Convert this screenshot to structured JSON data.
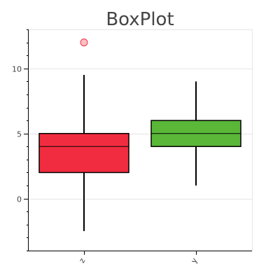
{
  "chart_data": {
    "type": "box",
    "title": "BoxPlot",
    "xlabel": "",
    "ylabel": "",
    "categories": [
      "z",
      "y"
    ],
    "ylim": [
      -4,
      13
    ],
    "yticks": [
      0,
      5,
      10
    ],
    "grid": true,
    "series": [
      {
        "category": "z",
        "whisker_low": -2.5,
        "q1": 2,
        "median": 4,
        "q3": 5,
        "whisker_high": 9.5,
        "outliers": [
          12
        ],
        "color": "#f22c40"
      },
      {
        "category": "y",
        "whisker_low": 1,
        "q1": 4,
        "median": 5,
        "q3": 6,
        "whisker_high": 9,
        "outliers": [],
        "color": "#5ab738"
      }
    ]
  }
}
